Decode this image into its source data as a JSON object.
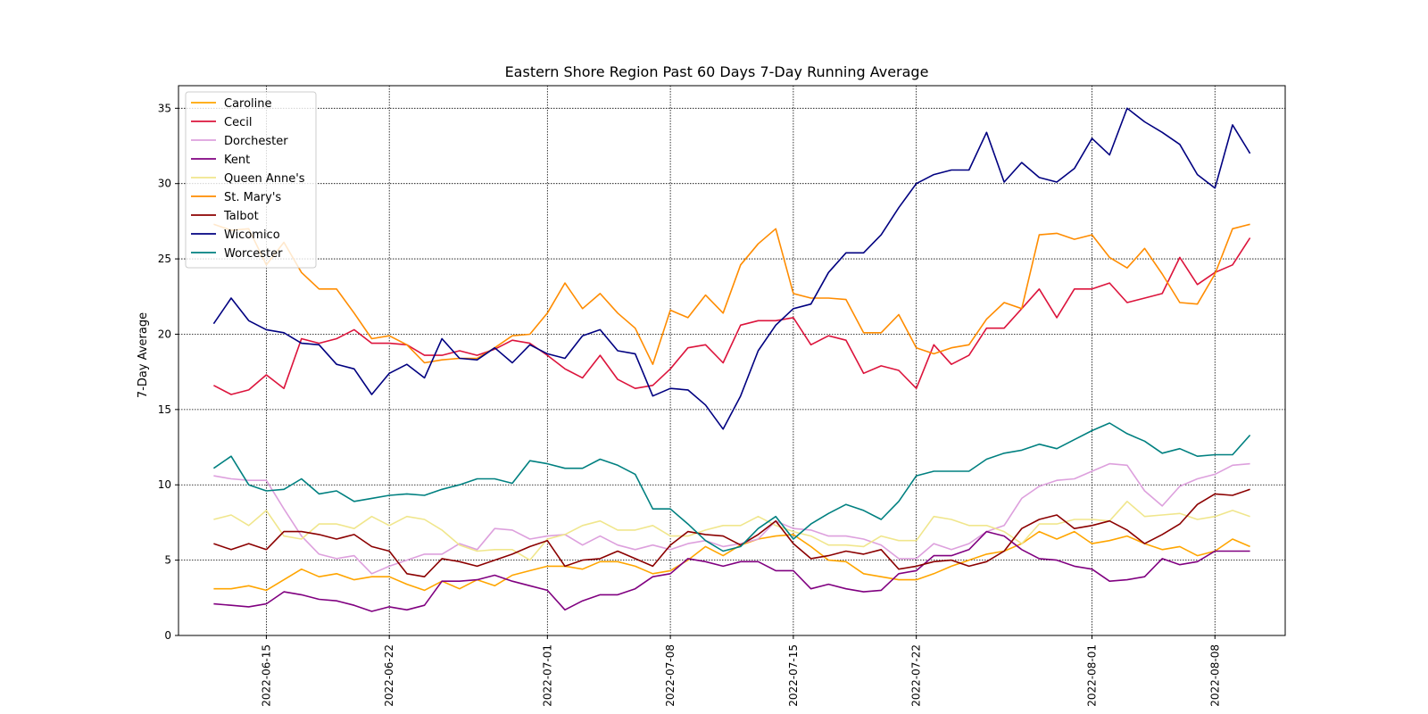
{
  "chart_data": {
    "type": "line",
    "title": "Eastern Shore Region Past 60 Days 7-Day Running Average",
    "xlabel": "",
    "ylabel": "7-Day Average",
    "x_start": "2022-06-12",
    "x_end": "2022-08-10",
    "xlim": [
      "2022-06-10",
      "2022-08-12"
    ],
    "ylim": [
      0,
      36.5
    ],
    "yticks": [
      0,
      5,
      10,
      15,
      20,
      25,
      30,
      35
    ],
    "xticks": [
      "2022-06-15",
      "2022-06-22",
      "2022-07-01",
      "2022-07-08",
      "2022-07-15",
      "2022-07-22",
      "2022-08-01",
      "2022-08-08"
    ],
    "grid": true,
    "legend_position": "top-left",
    "series": [
      {
        "name": "Caroline",
        "color": "#FFA500",
        "values": [
          3.1,
          3.1,
          3.3,
          3.0,
          3.7,
          4.4,
          3.9,
          4.1,
          3.7,
          3.9,
          3.9,
          3.4,
          3.0,
          3.6,
          3.1,
          3.7,
          3.3,
          4.0,
          4.3,
          4.6,
          4.6,
          4.4,
          4.9,
          4.9,
          4.6,
          4.1,
          4.3,
          5.0,
          5.9,
          5.3,
          6.0,
          6.4,
          6.6,
          6.7,
          5.9,
          5.0,
          4.9,
          4.1,
          3.9,
          3.7,
          3.7,
          4.1,
          4.6,
          5.0,
          5.4,
          5.6,
          6.1,
          6.9,
          6.4,
          6.9,
          6.1,
          6.3,
          6.6,
          6.1,
          5.7,
          5.9,
          5.3,
          5.6,
          6.4,
          5.9
        ]
      },
      {
        "name": "Cecil",
        "color": "#DC143C",
        "values": [
          16.6,
          16.0,
          16.3,
          17.3,
          16.4,
          19.7,
          19.4,
          19.7,
          20.3,
          19.4,
          19.4,
          19.3,
          18.6,
          18.6,
          18.9,
          18.6,
          19.0,
          19.6,
          19.4,
          18.6,
          17.7,
          17.1,
          18.6,
          17.0,
          16.4,
          16.6,
          17.7,
          19.1,
          19.3,
          18.1,
          20.6,
          20.9,
          20.9,
          21.1,
          19.3,
          19.9,
          19.6,
          17.4,
          17.9,
          17.6,
          16.4,
          19.3,
          18.0,
          18.6,
          20.4,
          20.4,
          21.7,
          23.0,
          21.1,
          23.0,
          23.0,
          23.4,
          22.1,
          22.4,
          22.7,
          25.1,
          23.3,
          24.1,
          24.6,
          26.4
        ]
      },
      {
        "name": "Dorchester",
        "color": "#DDA0DD",
        "values": [
          10.6,
          10.4,
          10.3,
          10.3,
          8.4,
          6.6,
          5.4,
          5.1,
          5.3,
          4.1,
          4.6,
          5.0,
          5.4,
          5.4,
          6.1,
          5.7,
          7.1,
          7.0,
          6.4,
          6.6,
          6.7,
          6.0,
          6.6,
          6.0,
          5.7,
          6.0,
          5.7,
          6.1,
          6.3,
          5.9,
          6.1,
          6.4,
          7.6,
          7.1,
          7.0,
          6.6,
          6.6,
          6.4,
          6.0,
          5.1,
          5.1,
          6.1,
          5.7,
          6.1,
          6.9,
          7.3,
          9.1,
          9.9,
          10.3,
          10.4,
          10.9,
          11.4,
          11.3,
          9.6,
          8.6,
          9.9,
          10.4,
          10.7,
          11.3,
          11.4
        ]
      },
      {
        "name": "Kent",
        "color": "#800080",
        "values": [
          2.1,
          2.0,
          1.9,
          2.1,
          2.9,
          2.7,
          2.4,
          2.3,
          2.0,
          1.6,
          1.9,
          1.7,
          2.0,
          3.6,
          3.6,
          3.7,
          4.0,
          3.6,
          3.3,
          3.0,
          1.7,
          2.3,
          2.7,
          2.7,
          3.1,
          3.9,
          4.1,
          5.1,
          4.9,
          4.6,
          4.9,
          4.9,
          4.3,
          4.3,
          3.1,
          3.4,
          3.1,
          2.9,
          3.0,
          4.1,
          4.3,
          5.3,
          5.3,
          5.7,
          6.9,
          6.6,
          5.7,
          5.1,
          5.0,
          4.6,
          4.4,
          3.6,
          3.7,
          3.9,
          5.1,
          4.7,
          4.9,
          5.6,
          5.6,
          5.6
        ]
      },
      {
        "name": "Queen Anne's",
        "color": "#F0E68C",
        "values": [
          7.7,
          8.0,
          7.3,
          8.3,
          6.6,
          6.4,
          7.4,
          7.4,
          7.1,
          7.9,
          7.3,
          7.9,
          7.7,
          7.0,
          6.0,
          5.6,
          5.7,
          5.7,
          5.0,
          6.4,
          6.7,
          7.3,
          7.6,
          7.0,
          7.0,
          7.3,
          6.6,
          6.6,
          7.0,
          7.3,
          7.3,
          7.9,
          7.3,
          6.9,
          6.6,
          6.0,
          6.0,
          5.9,
          6.6,
          6.3,
          6.3,
          7.9,
          7.7,
          7.3,
          7.3,
          6.9,
          6.1,
          7.4,
          7.4,
          7.7,
          7.7,
          7.6,
          8.9,
          7.9,
          8.0,
          8.1,
          7.7,
          7.9,
          8.3,
          7.9
        ]
      },
      {
        "name": "St. Mary's",
        "color": "#FF8C00",
        "values": [
          27.3,
          26.9,
          27.0,
          24.6,
          26.1,
          24.1,
          23.0,
          23.0,
          21.4,
          19.7,
          19.9,
          19.3,
          18.1,
          18.3,
          18.4,
          18.4,
          19.1,
          19.9,
          20.0,
          21.4,
          23.4,
          21.7,
          22.7,
          21.4,
          20.4,
          18.0,
          21.6,
          21.1,
          22.6,
          21.4,
          24.6,
          26.0,
          27.0,
          22.7,
          22.4,
          22.4,
          22.3,
          20.1,
          20.1,
          21.3,
          19.1,
          18.7,
          19.1,
          19.3,
          21.0,
          22.1,
          21.7,
          26.6,
          26.7,
          26.3,
          26.6,
          25.1,
          24.4,
          25.7,
          24.0,
          22.1,
          22.0,
          24.0,
          27.0,
          27.3
        ]
      },
      {
        "name": "Talbot",
        "color": "#8B0000",
        "values": [
          6.1,
          5.7,
          6.1,
          5.7,
          6.9,
          6.9,
          6.7,
          6.4,
          6.7,
          5.9,
          5.6,
          4.1,
          3.9,
          5.1,
          4.9,
          4.6,
          5.0,
          5.4,
          5.9,
          6.3,
          4.6,
          5.0,
          5.1,
          5.6,
          5.1,
          4.6,
          6.0,
          6.9,
          6.7,
          6.6,
          6.0,
          6.7,
          7.6,
          6.1,
          5.1,
          5.3,
          5.6,
          5.4,
          5.7,
          4.4,
          4.6,
          4.9,
          5.0,
          4.6,
          4.9,
          5.6,
          7.1,
          7.7,
          8.0,
          7.1,
          7.3,
          7.6,
          7.0,
          6.1,
          6.7,
          7.4,
          8.7,
          9.4,
          9.3,
          9.7
        ]
      },
      {
        "name": "Wicomico",
        "color": "#000080",
        "values": [
          20.7,
          22.4,
          20.9,
          20.3,
          20.1,
          19.4,
          19.3,
          18.0,
          17.7,
          16.0,
          17.4,
          18.0,
          17.1,
          19.7,
          18.4,
          18.3,
          19.1,
          18.1,
          19.3,
          18.7,
          18.4,
          19.9,
          20.3,
          18.9,
          18.7,
          15.9,
          16.4,
          16.3,
          15.3,
          13.7,
          15.9,
          18.9,
          20.6,
          21.7,
          22.0,
          24.1,
          25.4,
          25.4,
          26.6,
          28.4,
          30.0,
          30.6,
          30.9,
          30.9,
          33.4,
          30.1,
          31.4,
          30.4,
          30.1,
          31.0,
          33.0,
          31.9,
          35.0,
          34.1,
          33.4,
          32.6,
          30.6,
          29.7,
          33.9,
          32.0
        ]
      },
      {
        "name": "Worcester",
        "color": "#008080",
        "values": [
          11.1,
          11.9,
          10.0,
          9.6,
          9.7,
          10.4,
          9.4,
          9.6,
          8.9,
          9.1,
          9.3,
          9.4,
          9.3,
          9.7,
          10.0,
          10.4,
          10.4,
          10.1,
          11.6,
          11.4,
          11.1,
          11.1,
          11.7,
          11.3,
          10.7,
          8.4,
          8.4,
          7.4,
          6.3,
          5.6,
          5.9,
          7.1,
          7.9,
          6.4,
          7.4,
          8.1,
          8.7,
          8.3,
          7.7,
          8.9,
          10.6,
          10.9,
          10.9,
          10.9,
          11.7,
          12.1,
          12.3,
          12.7,
          12.4,
          13.0,
          13.6,
          14.1,
          13.4,
          12.9,
          12.1,
          12.4,
          11.9,
          12.0,
          12.0,
          13.3
        ]
      }
    ]
  }
}
